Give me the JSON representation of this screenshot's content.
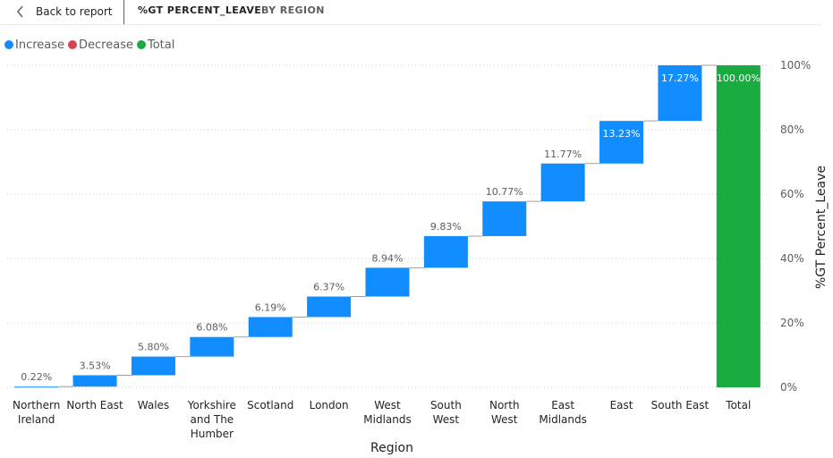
{
  "header": {
    "back_label": "Back to report",
    "title": "%GT PERCENT_LEAVE",
    "subtitle": "BY REGION"
  },
  "legend": [
    {
      "label": "Increase",
      "color": "#118dff"
    },
    {
      "label": "Decrease",
      "color": "#d64550"
    },
    {
      "label": "Total",
      "color": "#1aab40"
    }
  ],
  "colors": {
    "increase": "#118dff",
    "decrease": "#d64550",
    "total": "#1aab40"
  },
  "chart_data": {
    "type": "bar",
    "subtype": "waterfall",
    "xlabel": "Region",
    "ylabel": "%GT Percent_Leave",
    "ylim": [
      0,
      100
    ],
    "y_ticks": [
      "0%",
      "20%",
      "40%",
      "60%",
      "80%",
      "100%"
    ],
    "y_tick_values": [
      0,
      20,
      40,
      60,
      80,
      100
    ],
    "grid": true,
    "y_axis_position": "right",
    "legend_position": "top-left",
    "categories": [
      [
        "Northern",
        "Ireland"
      ],
      [
        "North East"
      ],
      [
        "Wales"
      ],
      [
        "Yorkshire",
        "and The",
        "Humber"
      ],
      [
        "Scotland"
      ],
      [
        "London"
      ],
      [
        "West",
        "Midlands"
      ],
      [
        "South",
        "West"
      ],
      [
        "North",
        "West"
      ],
      [
        "East",
        "Midlands"
      ],
      [
        "East"
      ],
      [
        "South East"
      ],
      [
        "Total"
      ]
    ],
    "values": [
      0.22,
      3.53,
      5.8,
      6.08,
      6.19,
      6.37,
      8.94,
      9.83,
      10.77,
      11.77,
      13.23,
      17.27,
      100.0
    ],
    "labels": [
      "0.22%",
      "3.53%",
      "5.80%",
      "6.08%",
      "6.19%",
      "6.37%",
      "8.94%",
      "9.83%",
      "10.77%",
      "11.77%",
      "13.23%",
      "17.27%",
      "100.00%"
    ],
    "kinds": [
      "increase",
      "increase",
      "increase",
      "increase",
      "increase",
      "increase",
      "increase",
      "increase",
      "increase",
      "increase",
      "increase",
      "increase",
      "total"
    ]
  }
}
